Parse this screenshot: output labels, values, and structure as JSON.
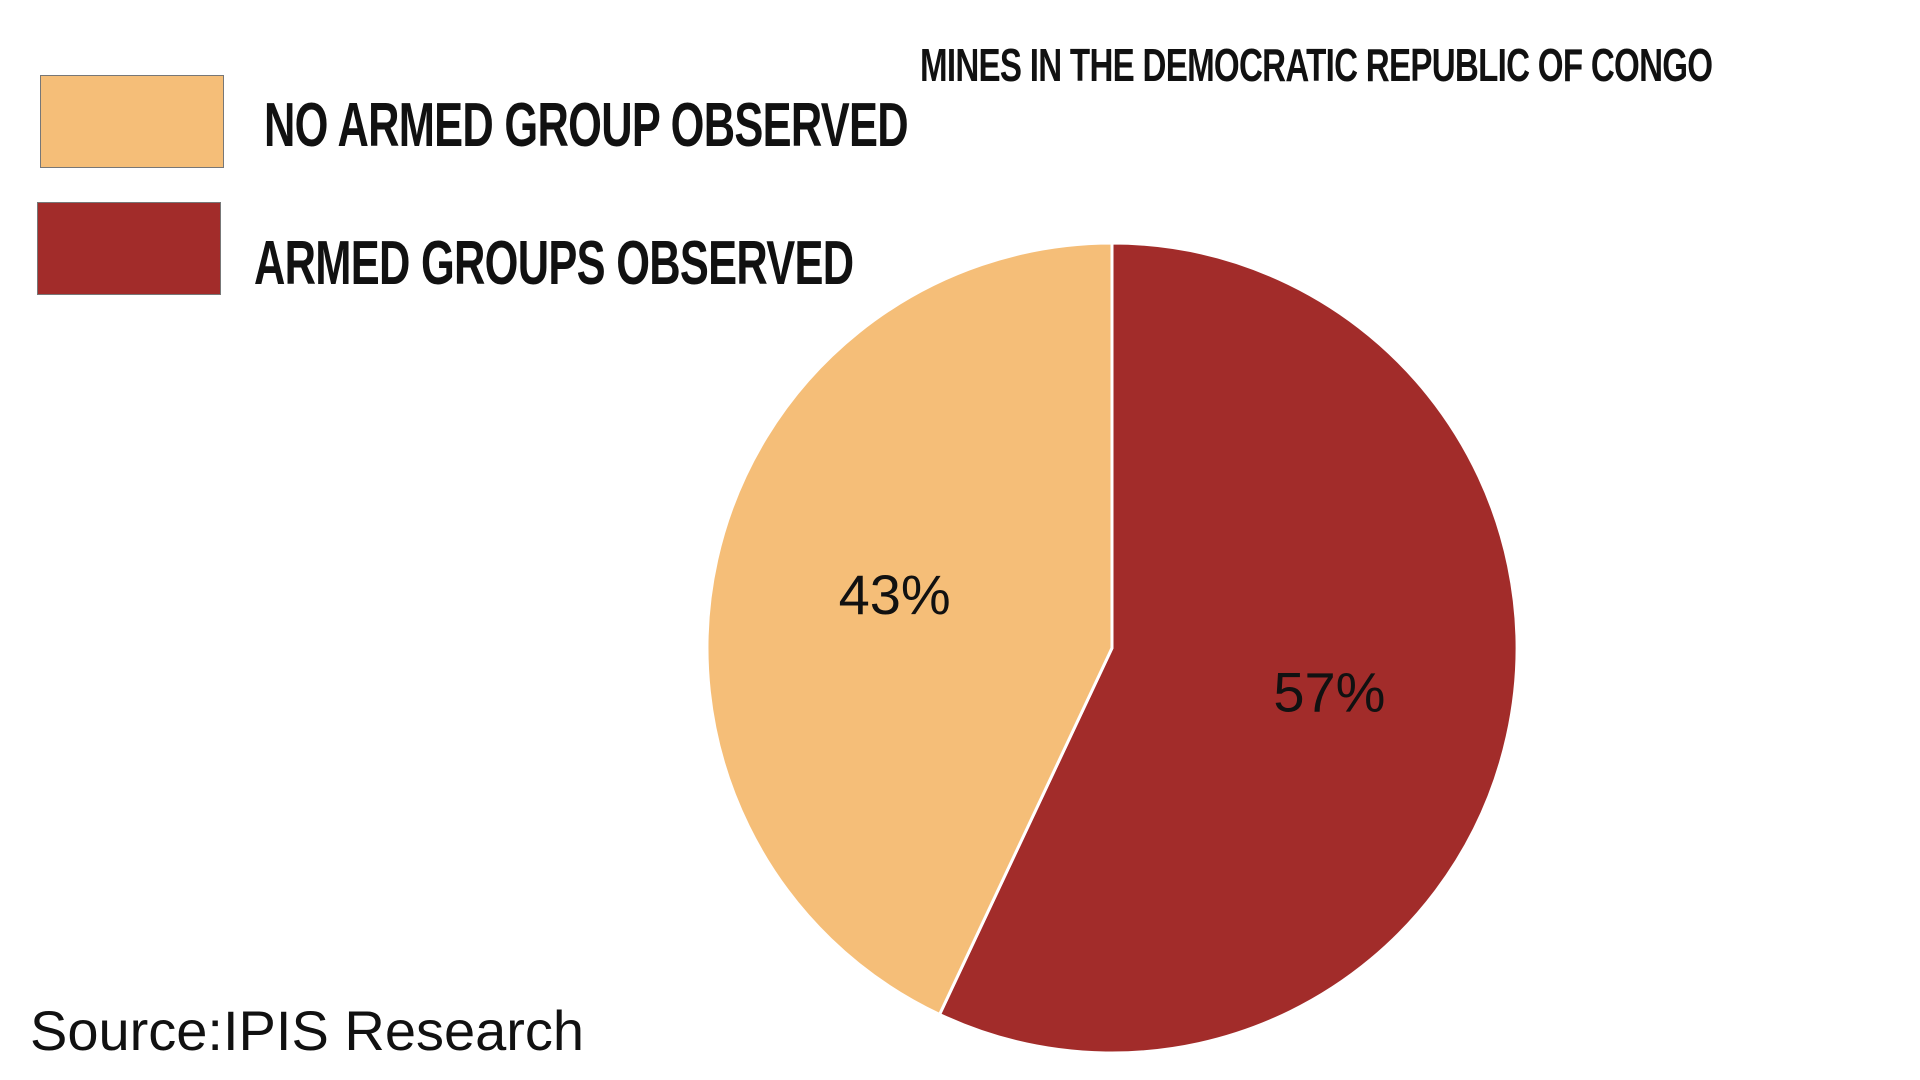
{
  "chart_data": {
    "type": "pie",
    "title": "MINES IN THE DEMOCRATIC REPUBLIC OF CONGO",
    "slices": [
      {
        "label": "ARMED GROUPS OBSERVED",
        "value": 57,
        "display": "57%",
        "color": "#a22c2a"
      },
      {
        "label": "NO ARMED GROUP OBSERVED",
        "value": 43,
        "display": "43%",
        "color": "#f5be78"
      }
    ],
    "legend": {
      "placement": "top-left",
      "items": [
        {
          "label": "NO ARMED GROUP OBSERVED",
          "color": "#f5be78"
        },
        {
          "label": "ARMED GROUPS OBSERVED",
          "color": "#a22c2a"
        }
      ]
    }
  },
  "source": "Source:IPIS Research"
}
